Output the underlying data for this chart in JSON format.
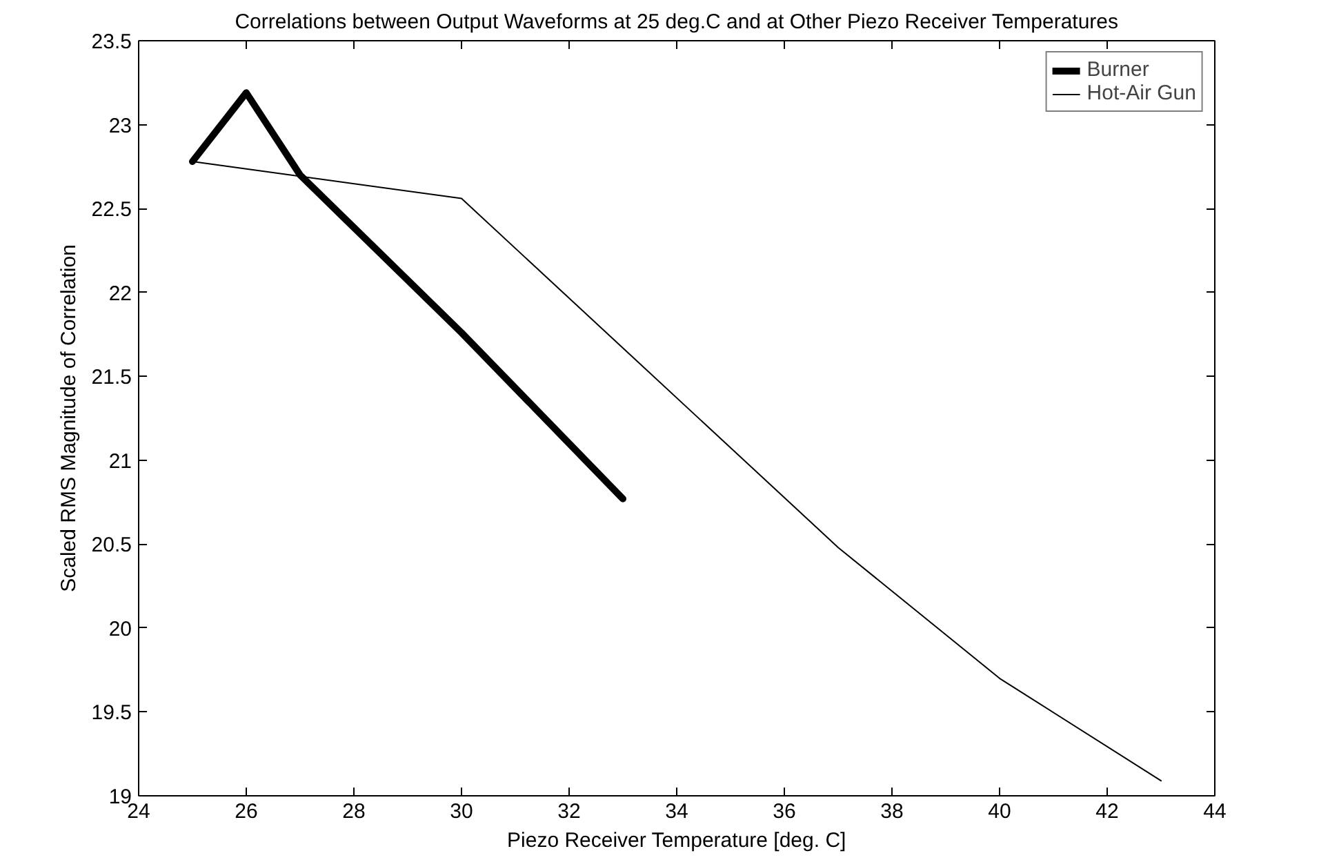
{
  "chart_data": {
    "type": "line",
    "title": "Correlations between Output Waveforms at 25 deg.C and at Other Piezo Receiver Temperatures",
    "xlabel": "Piezo Receiver Temperature [deg. C]",
    "ylabel": "Scaled RMS Magnitude of Correlation",
    "series": [
      {
        "name": "Burner",
        "color": "#000000",
        "x": [
          25,
          26,
          27,
          30,
          33
        ],
        "values": [
          22.78,
          23.19,
          22.7,
          21.76,
          20.77
        ]
      },
      {
        "name": "Hot-Air Gun",
        "color": "#000000",
        "x": [
          25,
          30,
          37,
          40,
          43
        ],
        "values": [
          22.78,
          22.56,
          20.48,
          19.7,
          19.09
        ]
      }
    ],
    "xlim": [
      24,
      44
    ],
    "ylim": [
      19,
      23.5
    ],
    "xticks": [
      24,
      26,
      28,
      30,
      32,
      34,
      36,
      38,
      40,
      42,
      44
    ],
    "yticks": [
      19,
      19.5,
      20,
      20.5,
      21,
      21.5,
      22,
      22.5,
      23,
      23.5
    ],
    "legend": "top right",
    "grid": false
  }
}
